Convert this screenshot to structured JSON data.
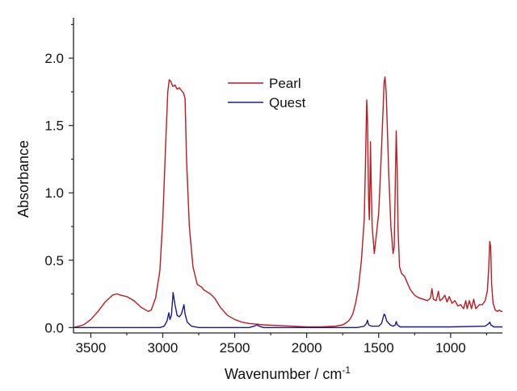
{
  "chart_data": {
    "type": "line",
    "xlabel": "Wavenumber / cm",
    "xlabel_superscript": "-1",
    "ylabel": "Absorbance",
    "xlim": [
      3620,
      640
    ],
    "ylim": [
      -0.04,
      2.3
    ],
    "x_reversed": true,
    "grid": false,
    "legend_position": "top-center",
    "x_ticks": [
      3500,
      3000,
      2500,
      2000,
      1500,
      1000
    ],
    "y_ticks": [
      0.0,
      0.5,
      1.0,
      1.5,
      2.0
    ],
    "y_tick_labels": [
      "0.0",
      "0.5",
      "1.0",
      "1.5",
      "2.0"
    ],
    "series": [
      {
        "name": "Pearl",
        "color": "#c0181c",
        "points": [
          [
            3620,
            0.0
          ],
          [
            3550,
            0.02
          ],
          [
            3500,
            0.06
          ],
          [
            3450,
            0.12
          ],
          [
            3400,
            0.19
          ],
          [
            3350,
            0.24
          ],
          [
            3320,
            0.25
          ],
          [
            3290,
            0.24
          ],
          [
            3250,
            0.23
          ],
          [
            3200,
            0.2
          ],
          [
            3150,
            0.15
          ],
          [
            3100,
            0.12
          ],
          [
            3080,
            0.13
          ],
          [
            3050,
            0.22
          ],
          [
            3020,
            0.42
          ],
          [
            3000,
            0.8
          ],
          [
            2980,
            1.35
          ],
          [
            2965,
            1.75
          ],
          [
            2955,
            1.84
          ],
          [
            2945,
            1.83
          ],
          [
            2930,
            1.79
          ],
          [
            2915,
            1.8
          ],
          [
            2900,
            1.77
          ],
          [
            2885,
            1.78
          ],
          [
            2870,
            1.76
          ],
          [
            2855,
            1.74
          ],
          [
            2845,
            1.7
          ],
          [
            2835,
            1.25
          ],
          [
            2815,
            0.75
          ],
          [
            2790,
            0.45
          ],
          [
            2760,
            0.32
          ],
          [
            2730,
            0.3
          ],
          [
            2715,
            0.28
          ],
          [
            2700,
            0.27
          ],
          [
            2670,
            0.25
          ],
          [
            2640,
            0.22
          ],
          [
            2600,
            0.15
          ],
          [
            2550,
            0.09
          ],
          [
            2500,
            0.06
          ],
          [
            2450,
            0.04
          ],
          [
            2400,
            0.03
          ],
          [
            2350,
            0.025
          ],
          [
            2300,
            0.02
          ],
          [
            2200,
            0.015
          ],
          [
            2100,
            0.01
          ],
          [
            2000,
            0.005
          ],
          [
            1900,
            0.005
          ],
          [
            1800,
            0.01
          ],
          [
            1750,
            0.02
          ],
          [
            1720,
            0.04
          ],
          [
            1700,
            0.06
          ],
          [
            1680,
            0.1
          ],
          [
            1660,
            0.18
          ],
          [
            1640,
            0.3
          ],
          [
            1620,
            0.5
          ],
          [
            1600,
            0.8
          ],
          [
            1590,
            1.3
          ],
          [
            1583,
            1.69
          ],
          [
            1578,
            1.55
          ],
          [
            1570,
            0.95
          ],
          [
            1565,
            0.8
          ],
          [
            1560,
            1.1
          ],
          [
            1557,
            1.38
          ],
          [
            1552,
            1.05
          ],
          [
            1545,
            0.75
          ],
          [
            1530,
            0.55
          ],
          [
            1515,
            0.7
          ],
          [
            1500,
            0.85
          ],
          [
            1485,
            1.2
          ],
          [
            1470,
            1.6
          ],
          [
            1462,
            1.82
          ],
          [
            1456,
            1.86
          ],
          [
            1448,
            1.75
          ],
          [
            1440,
            1.5
          ],
          [
            1430,
            1.15
          ],
          [
            1415,
            0.75
          ],
          [
            1400,
            0.55
          ],
          [
            1392,
            0.6
          ],
          [
            1385,
            1.05
          ],
          [
            1378,
            1.46
          ],
          [
            1372,
            1.2
          ],
          [
            1365,
            0.72
          ],
          [
            1355,
            0.45
          ],
          [
            1340,
            0.4
          ],
          [
            1320,
            0.38
          ],
          [
            1300,
            0.33
          ],
          [
            1280,
            0.28
          ],
          [
            1250,
            0.24
          ],
          [
            1220,
            0.22
          ],
          [
            1190,
            0.21
          ],
          [
            1160,
            0.2
          ],
          [
            1140,
            0.22
          ],
          [
            1130,
            0.29
          ],
          [
            1120,
            0.21
          ],
          [
            1100,
            0.2
          ],
          [
            1085,
            0.27
          ],
          [
            1075,
            0.2
          ],
          [
            1060,
            0.21
          ],
          [
            1040,
            0.24
          ],
          [
            1025,
            0.19
          ],
          [
            1010,
            0.23
          ],
          [
            990,
            0.18
          ],
          [
            970,
            0.2
          ],
          [
            950,
            0.16
          ],
          [
            930,
            0.17
          ],
          [
            910,
            0.14
          ],
          [
            895,
            0.2
          ],
          [
            885,
            0.14
          ],
          [
            870,
            0.2
          ],
          [
            855,
            0.14
          ],
          [
            840,
            0.21
          ],
          [
            825,
            0.14
          ],
          [
            800,
            0.17
          ],
          [
            780,
            0.17
          ],
          [
            760,
            0.2
          ],
          [
            745,
            0.27
          ],
          [
            735,
            0.45
          ],
          [
            728,
            0.64
          ],
          [
            722,
            0.6
          ],
          [
            715,
            0.32
          ],
          [
            705,
            0.18
          ],
          [
            690,
            0.13
          ],
          [
            675,
            0.12
          ],
          [
            660,
            0.13
          ],
          [
            650,
            0.12
          ],
          [
            640,
            0.12
          ]
        ]
      },
      {
        "name": "Quest",
        "color": "#1a1a8c",
        "points": [
          [
            3620,
            0.0
          ],
          [
            3100,
            0.0
          ],
          [
            3020,
            0.0
          ],
          [
            2990,
            0.01
          ],
          [
            2970,
            0.05
          ],
          [
            2958,
            0.11
          ],
          [
            2950,
            0.06
          ],
          [
            2940,
            0.09
          ],
          [
            2928,
            0.26
          ],
          [
            2915,
            0.17
          ],
          [
            2900,
            0.09
          ],
          [
            2885,
            0.08
          ],
          [
            2870,
            0.1
          ],
          [
            2860,
            0.14
          ],
          [
            2853,
            0.17
          ],
          [
            2845,
            0.1
          ],
          [
            2830,
            0.04
          ],
          [
            2800,
            0.01
          ],
          [
            2750,
            0.0
          ],
          [
            2400,
            0.0
          ],
          [
            2365,
            0.01
          ],
          [
            2345,
            0.02
          ],
          [
            2330,
            0.01
          ],
          [
            2300,
            0.0
          ],
          [
            1650,
            0.0
          ],
          [
            1600,
            0.01
          ],
          [
            1585,
            0.03
          ],
          [
            1578,
            0.055
          ],
          [
            1570,
            0.02
          ],
          [
            1550,
            0.01
          ],
          [
            1500,
            0.01
          ],
          [
            1480,
            0.03
          ],
          [
            1470,
            0.07
          ],
          [
            1462,
            0.1
          ],
          [
            1455,
            0.09
          ],
          [
            1445,
            0.05
          ],
          [
            1420,
            0.02
          ],
          [
            1400,
            0.01
          ],
          [
            1385,
            0.02
          ],
          [
            1378,
            0.045
          ],
          [
            1370,
            0.02
          ],
          [
            1350,
            0.005
          ],
          [
            1000,
            0.005
          ],
          [
            760,
            0.01
          ],
          [
            735,
            0.03
          ],
          [
            728,
            0.04
          ],
          [
            720,
            0.02
          ],
          [
            700,
            0.005
          ],
          [
            640,
            0.005
          ]
        ]
      }
    ]
  }
}
